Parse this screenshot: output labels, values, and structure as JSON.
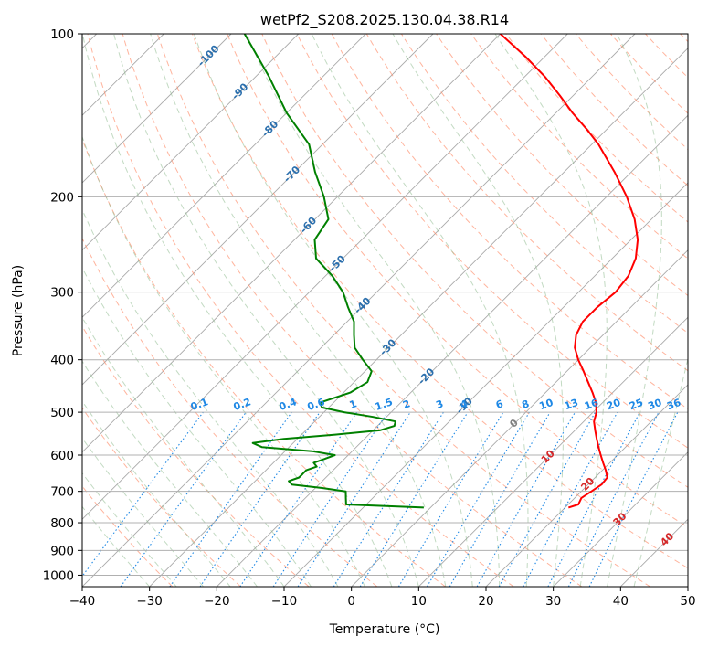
{
  "chart_data": {
    "type": "line",
    "title": "wetPf2_S208.2025.130.04.38.R14",
    "xlabel": "Temperature (°C)",
    "ylabel": "Pressure (hPa)",
    "xlim": [
      -40,
      50
    ],
    "ylim": [
      1050,
      100
    ],
    "y_scale": "log",
    "grid": true,
    "x_ticks": [
      -40,
      -30,
      -20,
      -10,
      0,
      10,
      20,
      30,
      40,
      50
    ],
    "y_ticks": [
      100,
      200,
      300,
      400,
      500,
      600,
      700,
      800,
      900,
      1000
    ],
    "colors": {
      "temperature": "#ff0000",
      "dewpoint": "#008000",
      "isotherm": "#a9a9a9",
      "dry_adiabat": "#ff8c69",
      "moist_adiabat": "#8fbc8f",
      "mixing_ratio": "#1e88e5",
      "label_blue": "#2b6fad",
      "label_red": "#d62728",
      "label_gray": "#808080"
    },
    "series": [
      {
        "name": "Temperature",
        "p": [
          750,
          740,
          720,
          700,
          680,
          660,
          640,
          620,
          600,
          580,
          560,
          540,
          520,
          500,
          480,
          460,
          440,
          420,
          400,
          380,
          360,
          340,
          320,
          300,
          280,
          260,
          240,
          220,
          200,
          180,
          160,
          150,
          140,
          130,
          120,
          110,
          100
        ],
        "t": [
          20.5,
          21.5,
          21.0,
          21.5,
          22.0,
          21.8,
          20.5,
          19.0,
          17.5,
          16.0,
          14.5,
          13.0,
          11.5,
          10.5,
          9.0,
          7.0,
          4.8,
          2.5,
          0.0,
          -2.3,
          -4.0,
          -5.0,
          -5.0,
          -4.5,
          -5.0,
          -6.5,
          -9.0,
          -12.5,
          -17.0,
          -22.5,
          -29.0,
          -33.0,
          -37.5,
          -42.0,
          -47.0,
          -53.0,
          -60.0
        ]
      },
      {
        "name": "Dewpoint",
        "p": [
          750,
          740,
          720,
          700,
          690,
          680,
          670,
          660,
          650,
          640,
          630,
          620,
          610,
          600,
          590,
          580,
          570,
          560,
          550,
          540,
          530,
          520,
          510,
          500,
          490,
          480,
          460,
          440,
          420,
          400,
          380,
          360,
          340,
          320,
          300,
          280,
          260,
          240,
          220,
          200,
          180,
          160,
          140,
          120,
          100
        ],
        "td": [
          -1.0,
          -13.0,
          -14.0,
          -15.0,
          -19.0,
          -24.0,
          -25.0,
          -24.0,
          -24.0,
          -24.0,
          -23.0,
          -24.0,
          -23.0,
          -22.0,
          -26.0,
          -34.0,
          -36.0,
          -32.0,
          -25.0,
          -19.0,
          -17.5,
          -18.0,
          -22.0,
          -27.0,
          -31.0,
          -32.0,
          -29.0,
          -28.0,
          -29.0,
          -32.0,
          -35.0,
          -37.0,
          -39.0,
          -42.0,
          -45.0,
          -49.0,
          -54.0,
          -57.0,
          -58.0,
          -62.0,
          -67.0,
          -72.0,
          -80.0,
          -88.0,
          -98.0
        ]
      }
    ],
    "isotherm_labels": {
      "blue": [
        "-100",
        "-90",
        "-80",
        "-70",
        "-60",
        "-50",
        "-40",
        "-30",
        "-20",
        "-10"
      ],
      "gray": [
        "0"
      ],
      "red": [
        "10",
        "20",
        "30",
        "40"
      ]
    },
    "mixing_ratio_labels": [
      "0.1",
      "0.2",
      "0.4",
      "0.6",
      "1",
      "1.5",
      "2",
      "3",
      "4",
      "6",
      "8",
      "10",
      "13",
      "16",
      "20",
      "25",
      "30",
      "36"
    ]
  }
}
